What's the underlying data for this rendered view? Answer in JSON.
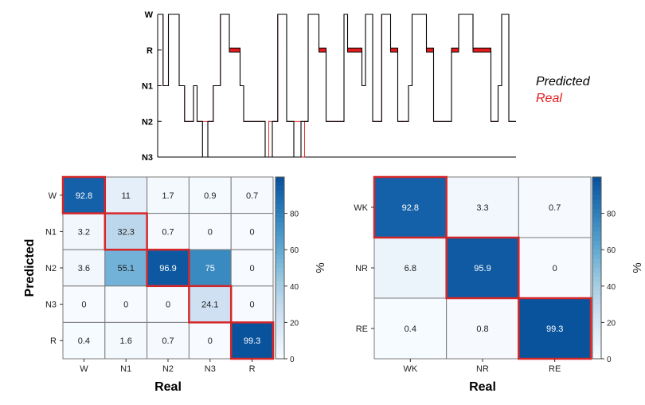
{
  "chart_data": [
    {
      "type": "line",
      "panel": "hypnogram",
      "y_categories": [
        "W",
        "R",
        "N1",
        "N2",
        "N3"
      ],
      "x_range": [
        0,
        100
      ],
      "legend_placement": "right",
      "series": [
        {
          "name": "Predicted",
          "color": "#000000",
          "points": [
            [
              0,
              "W"
            ],
            [
              1.5,
              "W"
            ],
            [
              1.5,
              "N1"
            ],
            [
              3,
              "N1"
            ],
            [
              3,
              "W"
            ],
            [
              6,
              "W"
            ],
            [
              6,
              "N1"
            ],
            [
              7.5,
              "N1"
            ],
            [
              7.5,
              "N2"
            ],
            [
              10,
              "N2"
            ],
            [
              10,
              "N1"
            ],
            [
              11,
              "N1"
            ],
            [
              11,
              "N2"
            ],
            [
              12.5,
              "N2"
            ],
            [
              12.5,
              "N3"
            ],
            [
              14,
              "N3"
            ],
            [
              14,
              "N2"
            ],
            [
              15.5,
              "N2"
            ],
            [
              15.5,
              "N1"
            ],
            [
              17.5,
              "N1"
            ],
            [
              17.5,
              "W"
            ],
            [
              20,
              "W"
            ],
            [
              20,
              "R"
            ],
            [
              23,
              "R"
            ],
            [
              23,
              "N1"
            ],
            [
              24,
              "N1"
            ],
            [
              24,
              "N2"
            ],
            [
              30,
              "N2"
            ],
            [
              30,
              "N3"
            ],
            [
              32,
              "N3"
            ],
            [
              32,
              "N2"
            ],
            [
              33.5,
              "N2"
            ],
            [
              33.5,
              "W"
            ],
            [
              36,
              "W"
            ],
            [
              36,
              "N2"
            ],
            [
              38,
              "N2"
            ],
            [
              38,
              "N3"
            ],
            [
              40,
              "N3"
            ],
            [
              40,
              "N2"
            ],
            [
              42,
              "N2"
            ],
            [
              42,
              "W"
            ],
            [
              45,
              "W"
            ],
            [
              45,
              "R"
            ],
            [
              47,
              "R"
            ],
            [
              47,
              "N2"
            ],
            [
              52,
              "N2"
            ],
            [
              52,
              "W"
            ],
            [
              53,
              "W"
            ],
            [
              53,
              "R"
            ],
            [
              57,
              "R"
            ],
            [
              57,
              "N1"
            ],
            [
              58,
              "N1"
            ],
            [
              58,
              "W"
            ],
            [
              60,
              "W"
            ],
            [
              60,
              "N2"
            ],
            [
              62.5,
              "N2"
            ],
            [
              62.5,
              "W"
            ],
            [
              65,
              "W"
            ],
            [
              65,
              "R"
            ],
            [
              67,
              "R"
            ],
            [
              67,
              "N2"
            ],
            [
              70,
              "N2"
            ],
            [
              70,
              "N1"
            ],
            [
              71,
              "N1"
            ],
            [
              71,
              "W"
            ],
            [
              75,
              "W"
            ],
            [
              75,
              "R"
            ],
            [
              77,
              "R"
            ],
            [
              77,
              "N2"
            ],
            [
              82,
              "N2"
            ],
            [
              82,
              "R"
            ],
            [
              84,
              "R"
            ],
            [
              84,
              "W"
            ],
            [
              88,
              "W"
            ],
            [
              88,
              "R"
            ],
            [
              93,
              "R"
            ],
            [
              93,
              "N2"
            ],
            [
              95,
              "N2"
            ],
            [
              95,
              "N1"
            ],
            [
              96,
              "N1"
            ],
            [
              96,
              "W"
            ],
            [
              98,
              "W"
            ],
            [
              98,
              "N2"
            ],
            [
              100,
              "N2"
            ]
          ]
        },
        {
          "name": "Real",
          "color": "#e31a1c",
          "points": [
            [
              0,
              "W"
            ],
            [
              1.5,
              "W"
            ],
            [
              1.5,
              "N1"
            ],
            [
              3,
              "N1"
            ],
            [
              3,
              "W"
            ],
            [
              6,
              "W"
            ],
            [
              6,
              "N1"
            ],
            [
              7.5,
              "N1"
            ],
            [
              7.5,
              "N2"
            ],
            [
              10,
              "N2"
            ],
            [
              10,
              "N1"
            ],
            [
              11,
              "N1"
            ],
            [
              11,
              "N2"
            ],
            [
              15.5,
              "N2"
            ],
            [
              15.5,
              "N1"
            ],
            [
              17.5,
              "N1"
            ],
            [
              17.5,
              "W"
            ],
            [
              20,
              "W"
            ],
            [
              20,
              "R"
            ],
            [
              23,
              "R"
            ],
            [
              23,
              "N1"
            ],
            [
              24,
              "N1"
            ],
            [
              24,
              "N2"
            ],
            [
              30,
              "N2"
            ],
            [
              30,
              "N3"
            ],
            [
              31,
              "N3"
            ],
            [
              31,
              "N2"
            ],
            [
              33.5,
              "N2"
            ],
            [
              33.5,
              "W"
            ],
            [
              36,
              "W"
            ],
            [
              36,
              "N2"
            ],
            [
              40,
              "N2"
            ],
            [
              40,
              "N3"
            ],
            [
              41,
              "N3"
            ],
            [
              41,
              "N2"
            ],
            [
              42,
              "N2"
            ],
            [
              42,
              "W"
            ],
            [
              45,
              "W"
            ],
            [
              45,
              "R"
            ],
            [
              47,
              "R"
            ],
            [
              47,
              "N2"
            ],
            [
              52,
              "N2"
            ],
            [
              52,
              "W"
            ],
            [
              53,
              "W"
            ],
            [
              53,
              "R"
            ],
            [
              57,
              "R"
            ],
            [
              57,
              "N1"
            ],
            [
              58,
              "N1"
            ],
            [
              58,
              "W"
            ],
            [
              60,
              "W"
            ],
            [
              60,
              "N2"
            ],
            [
              62.5,
              "N2"
            ],
            [
              62.5,
              "W"
            ],
            [
              65,
              "W"
            ],
            [
              65,
              "R"
            ],
            [
              67,
              "R"
            ],
            [
              67,
              "N2"
            ],
            [
              70,
              "N2"
            ],
            [
              70,
              "N1"
            ],
            [
              71,
              "N1"
            ],
            [
              71,
              "W"
            ],
            [
              75,
              "W"
            ],
            [
              75,
              "R"
            ],
            [
              77,
              "R"
            ],
            [
              77,
              "N2"
            ],
            [
              82,
              "N2"
            ],
            [
              82,
              "R"
            ],
            [
              84,
              "R"
            ],
            [
              84,
              "W"
            ],
            [
              88,
              "W"
            ],
            [
              88,
              "R"
            ],
            [
              93,
              "R"
            ],
            [
              93,
              "N2"
            ],
            [
              95,
              "N2"
            ],
            [
              95,
              "N1"
            ],
            [
              96,
              "N1"
            ],
            [
              96,
              "W"
            ],
            [
              98,
              "W"
            ],
            [
              98,
              "N2"
            ],
            [
              100,
              "N2"
            ]
          ]
        }
      ]
    },
    {
      "type": "heatmap",
      "panel": "confusion-5class",
      "xlabel": "Real",
      "ylabel": "Predicted",
      "x_categories": [
        "W",
        "N1",
        "N2",
        "N3",
        "R"
      ],
      "y_categories": [
        "W",
        "N1",
        "N2",
        "N3",
        "R"
      ],
      "values": [
        [
          92.8,
          11,
          1.7,
          0.9,
          0.7
        ],
        [
          3.2,
          32.3,
          0.7,
          0,
          0
        ],
        [
          3.6,
          55.1,
          96.9,
          75,
          0
        ],
        [
          0,
          0,
          0,
          24.1,
          0
        ],
        [
          0.4,
          1.6,
          0.7,
          0,
          99.3
        ]
      ],
      "labels": [
        [
          "92.8",
          "11",
          "1.7",
          "0.9",
          "0.7"
        ],
        [
          "3.2",
          "32.3",
          "0.7",
          "0",
          "0"
        ],
        [
          "3.6",
          "55.1",
          "96.9",
          "75",
          "0"
        ],
        [
          "0",
          "0",
          "0",
          "24.1",
          "0"
        ],
        [
          "0.4",
          "1.6",
          "0.7",
          "0",
          "99.3"
        ]
      ],
      "colorbar": {
        "label": "%",
        "range": [
          0,
          100
        ],
        "ticks": [
          "0",
          "20",
          "40",
          "60",
          "80"
        ]
      },
      "diagonal_highlight_color": "#d62728"
    },
    {
      "type": "heatmap",
      "panel": "confusion-3class",
      "xlabel": "Real",
      "ylabel": "",
      "x_categories": [
        "WK",
        "NR",
        "RE"
      ],
      "y_categories": [
        "WK",
        "NR",
        "RE"
      ],
      "values": [
        [
          92.8,
          3.3,
          0.7
        ],
        [
          6.8,
          95.9,
          0
        ],
        [
          0.4,
          0.8,
          99.3
        ]
      ],
      "labels": [
        [
          "92.8",
          "3.3",
          "0.7"
        ],
        [
          "6.8",
          "95.9",
          "0"
        ],
        [
          "0.4",
          "0.8",
          "99.3"
        ]
      ],
      "colorbar": {
        "label": "%",
        "range": [
          0,
          100
        ],
        "ticks": [
          "0",
          "20",
          "40",
          "60",
          "80"
        ]
      },
      "diagonal_highlight_color": "#d62728"
    }
  ]
}
